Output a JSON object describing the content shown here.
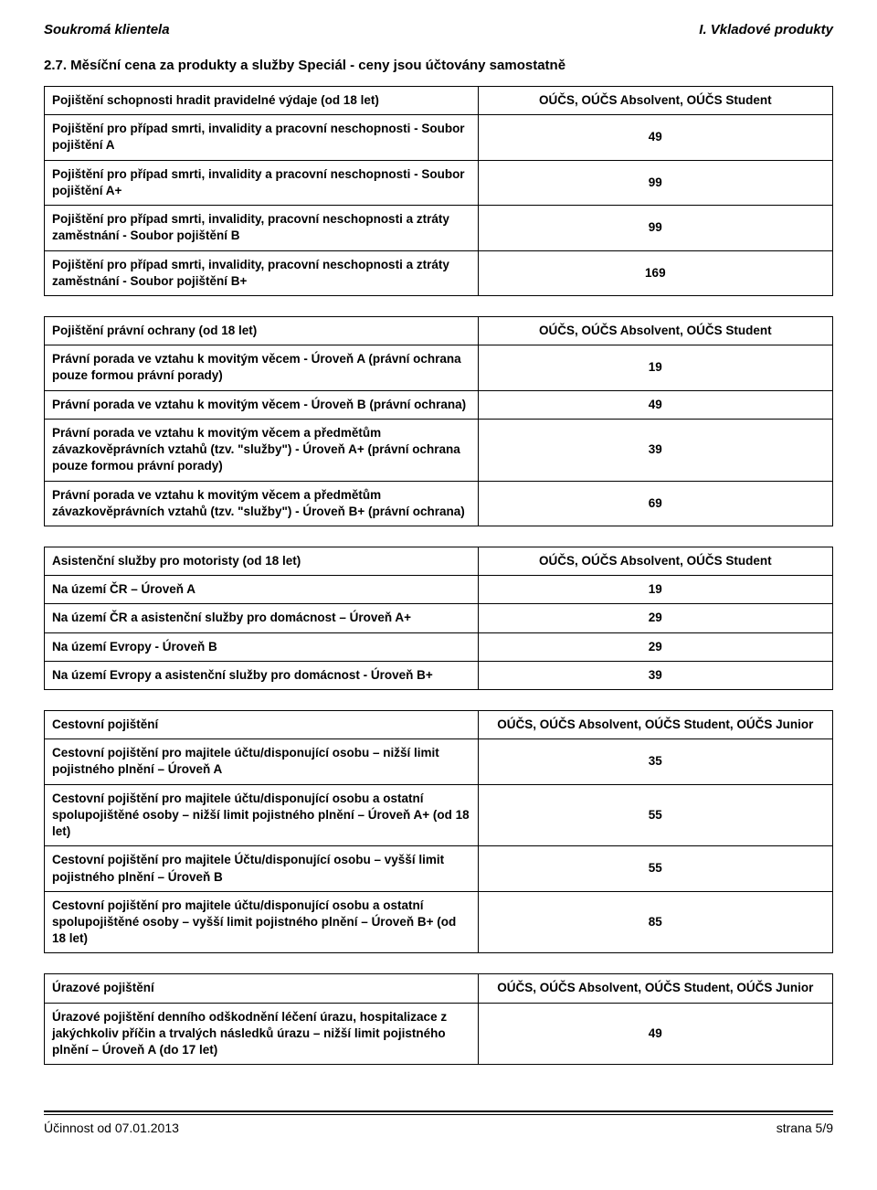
{
  "header": {
    "left": "Soukromá klientela",
    "right": "I. Vkladové produkty"
  },
  "section_title": "2.7. Měsíční cena za produkty a služby Speciál - ceny jsou účtovány samostatně",
  "tables": [
    {
      "rows": [
        {
          "label": "Pojištění schopnosti hradit pravidelné výdaje (od 18 let)",
          "value": "OÚČS, OÚČS Absolvent, OÚČS Student"
        },
        {
          "label": "Pojištění pro případ smrti, invalidity a pracovní neschopnosti - Soubor pojištění A",
          "value": "49"
        },
        {
          "label": "Pojištění pro případ smrti, invalidity a pracovní neschopnosti - Soubor pojištění A+",
          "value": "99"
        },
        {
          "label": "Pojištění pro případ smrti, invalidity, pracovní neschopnosti a ztráty zaměstnání - Soubor pojištění B",
          "value": "99"
        },
        {
          "label": "Pojištění pro případ smrti, invalidity, pracovní neschopnosti a ztráty zaměstnání - Soubor pojištění B+",
          "value": "169"
        }
      ]
    },
    {
      "rows": [
        {
          "label": "Pojištění právní ochrany (od 18 let)",
          "value": "OÚČS, OÚČS Absolvent, OÚČS Student"
        },
        {
          "label": "Právní porada ve vztahu k movitým věcem - Úroveň A (právní ochrana pouze formou právní porady)",
          "value": "19"
        },
        {
          "label": "Právní porada ve vztahu k movitým věcem - Úroveň B (právní ochrana)",
          "value": "49"
        },
        {
          "label": "Právní porada ve vztahu k movitým věcem a předmětům závazkověprávních vztahů (tzv. \"služby\") - Úroveň A+ (právní ochrana pouze formou právní porady)",
          "value": "39"
        },
        {
          "label": "Právní porada ve vztahu k movitým věcem a předmětům závazkověprávních vztahů (tzv. \"služby\") - Úroveň B+ (právní ochrana)",
          "value": "69"
        }
      ]
    },
    {
      "rows": [
        {
          "label": "Asistenční služby pro motoristy (od 18 let)",
          "value": "OÚČS, OÚČS Absolvent, OÚČS Student"
        },
        {
          "label": "Na území ČR – Úroveň A",
          "value": "19"
        },
        {
          "label": "Na území ČR a asistenční služby pro domácnost – Úroveň A+",
          "value": "29"
        },
        {
          "label": "Na území Evropy - Úroveň B",
          "value": "29"
        },
        {
          "label": "Na území Evropy a asistenční služby pro domácnost - Úroveň B+",
          "value": "39"
        }
      ]
    },
    {
      "rows": [
        {
          "label": "Cestovní pojištění",
          "value": "OÚČS, OÚČS Absolvent, OÚČS Student, OÚČS Junior"
        },
        {
          "label": "Cestovní pojištění pro majitele účtu/disponující osobu – nižší limit pojistného plnění – Úroveň A",
          "value": "35"
        },
        {
          "label": "Cestovní pojištění pro majitele účtu/disponující osobu a ostatní spolupojištěné osoby – nižší limit pojistného plnění – Úroveň A+ (od 18 let)",
          "value": "55"
        },
        {
          "label": "Cestovní pojištění pro majitele Účtu/disponující osobu – vyšší limit pojistného plnění – Úroveň B",
          "value": "55"
        },
        {
          "label": "Cestovní pojištění pro majitele účtu/disponující osobu a ostatní spolupojištěné osoby – vyšší limit pojistného plnění – Úroveň B+ (od 18 let)",
          "value": "85"
        }
      ]
    },
    {
      "rows": [
        {
          "label": "Úrazové pojištění",
          "value": "OÚČS, OÚČS Absolvent, OÚČS Student, OÚČS Junior"
        },
        {
          "label": "Úrazové pojištění denního odškodnění léčení úrazu, hospitalizace z jakýchkoliv příčin a trvalých následků úrazu – nižší limit pojistného plnění – Úroveň A (do 17 let)",
          "value": "49"
        }
      ]
    }
  ],
  "footer": {
    "left": "Účinnost od 07.01.2013",
    "right": "strana 5/9"
  }
}
